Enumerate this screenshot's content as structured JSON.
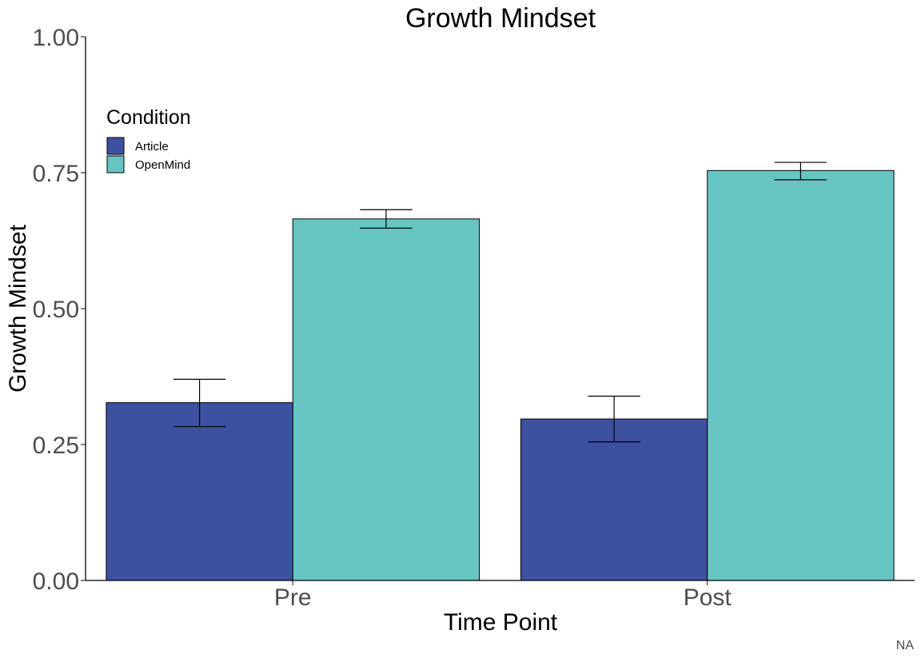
{
  "chart_data": {
    "type": "bar",
    "title": "Growth Mindset",
    "xlabel": "Time Point",
    "ylabel": "Growth Mindset",
    "categories": [
      "Pre",
      "Post"
    ],
    "ylim": [
      0,
      1
    ],
    "yticks": [
      "0.00",
      "0.25",
      "0.50",
      "0.75",
      "1.00"
    ],
    "grid": false,
    "legend": {
      "title": "Condition",
      "placement": "top-left"
    },
    "series": [
      {
        "name": "Article",
        "color": "#3e50a0",
        "values": [
          0.327,
          0.297
        ],
        "error_low": [
          0.283,
          0.255
        ],
        "error_high": [
          0.37,
          0.339
        ]
      },
      {
        "name": "OpenMind",
        "color": "#66c5c3",
        "values": [
          0.665,
          0.754
        ],
        "error_low": [
          0.648,
          0.737
        ],
        "error_high": [
          0.682,
          0.769
        ]
      }
    ],
    "caption": "NA"
  }
}
